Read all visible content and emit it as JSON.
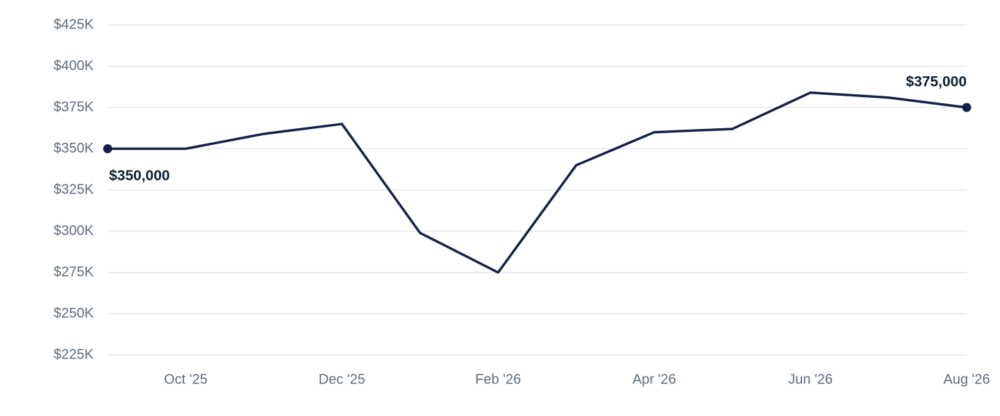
{
  "chart_data": {
    "type": "line",
    "categories": [
      null,
      "Oct '25",
      null,
      "Dec '25",
      null,
      "Feb '26",
      null,
      "Apr '26",
      null,
      "Jun '26",
      null,
      "Aug '26"
    ],
    "values": [
      350000,
      350000,
      359000,
      365000,
      299000,
      275000,
      340000,
      360000,
      362000,
      384000,
      381000,
      375000
    ],
    "value_labels": [
      "$350,000",
      null,
      null,
      null,
      null,
      null,
      null,
      null,
      null,
      null,
      null,
      "$375,000"
    ],
    "color": "#14204a",
    "ylim": [
      225000,
      425000
    ],
    "yticks": [
      {
        "value": 225000,
        "label": "$225K"
      },
      {
        "value": 250000,
        "label": "$250K"
      },
      {
        "value": 275000,
        "label": "$275K"
      },
      {
        "value": 300000,
        "label": "$300K"
      },
      {
        "value": 325000,
        "label": "$325K"
      },
      {
        "value": 350000,
        "label": "$350K"
      },
      {
        "value": 375000,
        "label": "$375K"
      },
      {
        "value": 400000,
        "label": "$400K"
      },
      {
        "value": 425000,
        "label": "$425K"
      }
    ],
    "grid": true
  }
}
